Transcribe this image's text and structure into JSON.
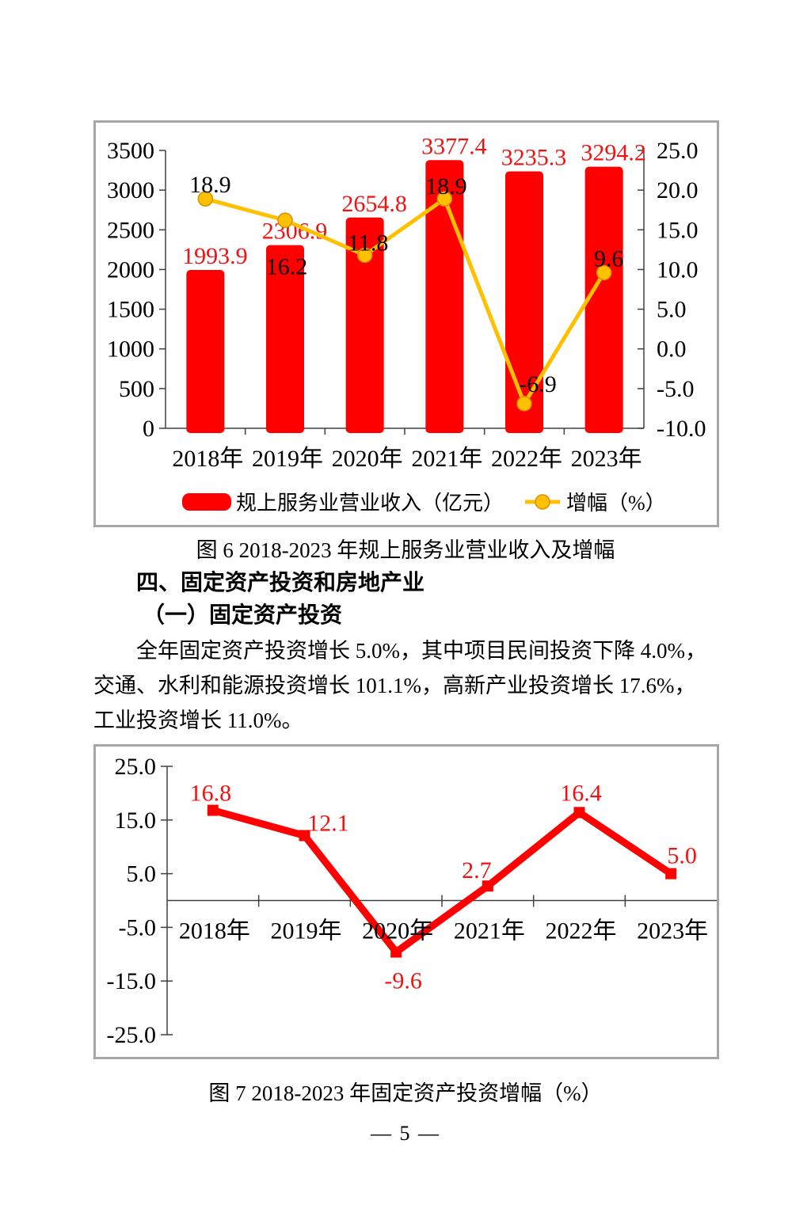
{
  "page": {
    "number_label": "— 5 —"
  },
  "figure6": {
    "caption": "图 6  2018-2023 年规上服务业营业收入及增幅"
  },
  "section": {
    "heading1": "四、固定资产投资和房地产业",
    "heading2": "（一）固定资产投资",
    "paragraph_lines": [
      "全年固定资产投资增长 5.0%，其中项目民间投资下降 4.0%，",
      "交通、水利和能源投资增长 101.1%，高新产业投资增长 17.6%，",
      "工业投资增长 11.0%。"
    ]
  },
  "figure7": {
    "caption": "图 7  2018-2023 年固定资产投资增幅（%）"
  },
  "colors": {
    "bar_red": "#FF0000",
    "label_red": "#F21010",
    "line_gold": "#FFC000",
    "gold_marker_stroke": "#D49000",
    "axis_gray": "#404040",
    "figure_border": "#A6A6A6",
    "text_black": "#000000"
  },
  "chart_data": [
    {
      "type": "bar",
      "subtype": "bar+line combo, dual axis",
      "title": "图 6  2018-2023 年规上服务业营业收入及增幅",
      "categories": [
        "2018年",
        "2019年",
        "2020年",
        "2021年",
        "2022年",
        "2023年"
      ],
      "series": [
        {
          "name": "规上服务业营业收入（亿元）",
          "type": "bar",
          "axis": "left",
          "color": "#FF0000",
          "values": [
            1993.9,
            2306.9,
            2654.8,
            3377.4,
            3235.3,
            3294.2
          ],
          "labels": [
            "1993.9",
            "2306.9",
            "2654.8",
            "3377.4",
            "3235.3",
            "3294.2"
          ]
        },
        {
          "name": "增幅（%）",
          "type": "line",
          "axis": "right",
          "color": "#FFC000",
          "values": [
            18.9,
            16.2,
            11.8,
            18.9,
            -6.9,
            9.6
          ],
          "labels": [
            "18.9",
            "16.2",
            "11.8",
            "18.9",
            "-6.9",
            "9.6"
          ]
        }
      ],
      "left_axis": {
        "min": 0,
        "max": 3500,
        "step": 500,
        "ticks": [
          "3500",
          "3000",
          "2500",
          "2000",
          "1500",
          "1000",
          "500",
          "0"
        ]
      },
      "right_axis": {
        "min": -10,
        "max": 25,
        "step": 5,
        "ticks": [
          "25.0",
          "20.0",
          "15.0",
          "10.0",
          "5.0",
          "0.0",
          "-5.0",
          "-10.0"
        ]
      },
      "grid": "off",
      "legend_position": "bottom"
    },
    {
      "type": "line",
      "title": "图 7  2018-2023 年固定资产投资增幅（%）",
      "categories": [
        "2018年",
        "2019年",
        "2020年",
        "2021年",
        "2022年",
        "2023年"
      ],
      "series": [
        {
          "name": "固定资产投资增幅（%）",
          "type": "line",
          "color": "#FF0000",
          "marker": "square",
          "values": [
            16.8,
            12.1,
            -9.6,
            2.7,
            16.4,
            5.0
          ],
          "labels": [
            "16.8",
            "12.1",
            "-9.6",
            "2.7",
            "16.4",
            "5.0"
          ]
        }
      ],
      "y_axis": {
        "min": -25,
        "max": 25,
        "step": 10,
        "ticks": [
          "25.0",
          "15.0",
          "5.0",
          "-5.0",
          "-15.0",
          "-25.0"
        ]
      },
      "grid": "off",
      "legend_position": "none"
    }
  ]
}
